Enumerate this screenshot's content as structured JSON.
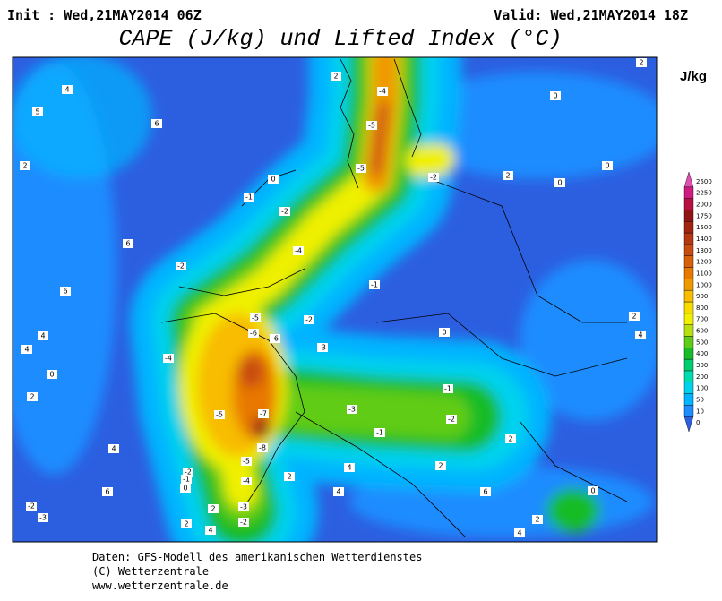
{
  "header": {
    "init": "Init : Wed,21MAY2014 06Z",
    "valid": "Valid: Wed,21MAY2014 18Z",
    "title": "CAPE (J/kg) und Lifted Index (°C)"
  },
  "legend": {
    "unit": "J/kg",
    "levels": [
      0,
      10,
      50,
      100,
      200,
      300,
      400,
      500,
      600,
      700,
      800,
      900,
      1000,
      1100,
      1200,
      1300,
      1400,
      1500,
      1750,
      2000,
      2250,
      2500
    ],
    "colors": [
      "#2c5fe0",
      "#1c8cff",
      "#00b4ff",
      "#00d2ee",
      "#00dcb0",
      "#00cc70",
      "#18bc28",
      "#60cc18",
      "#b8e010",
      "#f0f000",
      "#f8dc00",
      "#f8bc00",
      "#f09800",
      "#e87800",
      "#d86008",
      "#c84c10",
      "#b43810",
      "#a02410",
      "#901414",
      "#b81040",
      "#d01c80",
      "#e050b0"
    ]
  },
  "map": {
    "contour_labels": [
      2,
      -4,
      -5,
      -5,
      -2,
      4,
      5,
      6,
      2,
      0,
      -1,
      -2,
      -4,
      -2,
      6,
      6,
      4,
      4,
      -5,
      -6,
      -6,
      -2,
      -3,
      -4,
      -5,
      -7,
      -8,
      -5,
      -4,
      -3,
      -2,
      -2,
      -1,
      0,
      -1,
      -1,
      -2,
      -3,
      -1,
      2,
      0,
      0,
      0,
      2,
      4,
      2,
      0,
      2,
      2,
      4,
      2,
      4,
      6,
      0,
      2,
      4,
      2,
      4,
      2,
      -2,
      -3,
      6,
      4,
      2,
      0
    ]
  },
  "footer": [
    "Daten: GFS-Modell des amerikanischen Wetterdienstes",
    "(C) Wetterzentrale",
    "www.wetterzentrale.de"
  ]
}
